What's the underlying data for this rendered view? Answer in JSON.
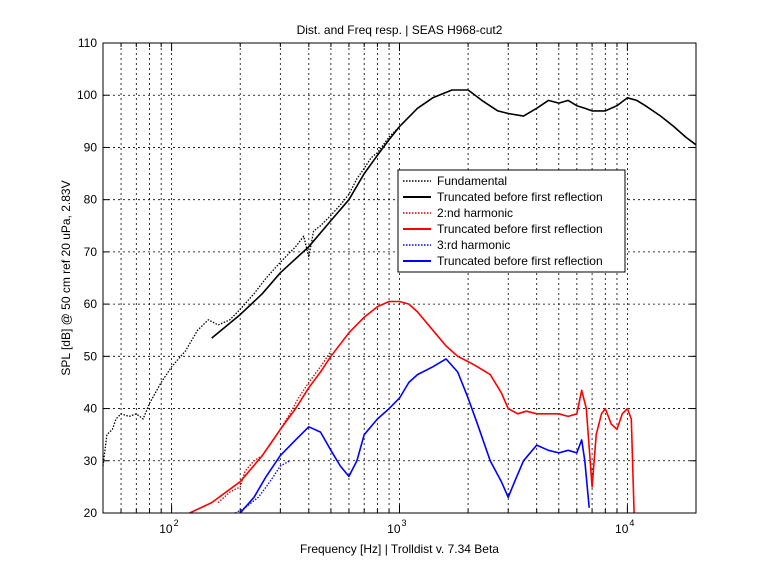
{
  "chart_data": {
    "type": "line",
    "title": "Dist. and Freq resp.  | SEAS H968-cut2",
    "xlabel": "Frequency [Hz] | Trolldist v. 7.34 Beta",
    "ylabel": "SPL [dB] @ 50 cm ref 20 uPa, 2.83V",
    "xscale": "log",
    "xlim": [
      50,
      20000
    ],
    "ylim": [
      20,
      110
    ],
    "grid": true,
    "legend_position": "center-right",
    "x_ticks": [
      {
        "value": 100,
        "base": "10",
        "exp": "2"
      },
      {
        "value": 1000,
        "base": "10",
        "exp": "3"
      },
      {
        "value": 10000,
        "base": "10",
        "exp": "4"
      }
    ],
    "y_ticks": [
      "20",
      "30",
      "40",
      "50",
      "60",
      "70",
      "80",
      "90",
      "100",
      "110"
    ],
    "series": [
      {
        "name": "Fundamental",
        "color": "#000000",
        "style": "dotted",
        "points": [
          [
            50,
            29
          ],
          [
            52,
            35
          ],
          [
            55,
            36
          ],
          [
            57,
            38
          ],
          [
            60,
            39
          ],
          [
            65,
            38.5
          ],
          [
            70,
            39
          ],
          [
            75,
            38
          ],
          [
            80,
            41
          ],
          [
            90,
            45
          ],
          [
            100,
            48
          ],
          [
            115,
            51
          ],
          [
            130,
            55
          ],
          [
            145,
            57
          ],
          [
            160,
            56
          ],
          [
            180,
            57
          ],
          [
            200,
            59
          ],
          [
            230,
            62
          ],
          [
            260,
            65
          ],
          [
            300,
            68
          ],
          [
            350,
            71
          ],
          [
            380,
            73
          ],
          [
            400,
            69
          ],
          [
            420,
            74
          ],
          [
            450,
            75
          ],
          [
            500,
            77
          ],
          [
            550,
            79
          ],
          [
            600,
            81
          ],
          [
            650,
            84
          ],
          [
            700,
            86
          ],
          [
            750,
            88
          ],
          [
            800,
            89
          ],
          [
            900,
            92
          ],
          [
            1000,
            94
          ]
        ]
      },
      {
        "name": "Truncated before first reflection",
        "color": "#000000",
        "style": "solid",
        "points": [
          [
            150,
            53.5
          ],
          [
            200,
            58
          ],
          [
            250,
            62
          ],
          [
            300,
            66
          ],
          [
            400,
            71
          ],
          [
            500,
            76
          ],
          [
            600,
            80
          ],
          [
            700,
            85
          ],
          [
            800,
            88.5
          ],
          [
            900,
            91.5
          ],
          [
            1000,
            94
          ],
          [
            1200,
            97.5
          ],
          [
            1400,
            99.5
          ],
          [
            1700,
            101
          ],
          [
            2000,
            101
          ],
          [
            2300,
            99
          ],
          [
            2700,
            97
          ],
          [
            3000,
            96.5
          ],
          [
            3500,
            96
          ],
          [
            4000,
            97.5
          ],
          [
            4500,
            99
          ],
          [
            5000,
            98.5
          ],
          [
            5500,
            99
          ],
          [
            6000,
            98
          ],
          [
            6500,
            97.5
          ],
          [
            7000,
            97
          ],
          [
            8000,
            97
          ],
          [
            9000,
            98
          ],
          [
            10000,
            99.5
          ],
          [
            11000,
            99
          ],
          [
            12000,
            98
          ],
          [
            14000,
            96
          ],
          [
            16000,
            94
          ],
          [
            18000,
            92
          ],
          [
            20000,
            90.5
          ]
        ]
      },
      {
        "name": "2:nd harmonic",
        "color": "#d00000",
        "style": "dotted",
        "points": [
          [
            160,
            22
          ],
          [
            180,
            24
          ],
          [
            200,
            25
          ],
          [
            210,
            28
          ],
          [
            230,
            30
          ],
          [
            250,
            31
          ],
          [
            280,
            34
          ],
          [
            300,
            36
          ],
          [
            330,
            39
          ],
          [
            360,
            42
          ],
          [
            400,
            45
          ],
          [
            450,
            48
          ],
          [
            500,
            51
          ]
        ]
      },
      {
        "name": "Truncated before first reflection",
        "color": "#ff0000",
        "style": "solid",
        "points": [
          [
            120,
            20
          ],
          [
            150,
            22
          ],
          [
            200,
            26
          ],
          [
            250,
            31
          ],
          [
            300,
            36
          ],
          [
            350,
            40
          ],
          [
            400,
            44
          ],
          [
            450,
            47
          ],
          [
            500,
            50
          ],
          [
            600,
            54.5
          ],
          [
            700,
            57.5
          ],
          [
            800,
            59.5
          ],
          [
            900,
            60.5
          ],
          [
            1000,
            60.5
          ],
          [
            1100,
            60
          ],
          [
            1200,
            58.5
          ],
          [
            1400,
            55
          ],
          [
            1600,
            52
          ],
          [
            1800,
            50
          ],
          [
            2000,
            49
          ],
          [
            2200,
            48
          ],
          [
            2500,
            46.5
          ],
          [
            2800,
            43
          ],
          [
            3000,
            40
          ],
          [
            3300,
            39
          ],
          [
            3600,
            39.5
          ],
          [
            4000,
            39
          ],
          [
            4500,
            39
          ],
          [
            5000,
            39
          ],
          [
            5500,
            38.5
          ],
          [
            6000,
            39
          ],
          [
            6300,
            43.5
          ],
          [
            6600,
            40
          ],
          [
            7000,
            25
          ],
          [
            7300,
            35
          ],
          [
            7700,
            39
          ],
          [
            8000,
            40
          ],
          [
            8500,
            37
          ],
          [
            9000,
            36
          ],
          [
            9500,
            39
          ],
          [
            10000,
            40
          ],
          [
            10400,
            38
          ],
          [
            10700,
            20
          ]
        ]
      },
      {
        "name": "3:rd harmonic",
        "color": "#0000ff",
        "style": "dotted",
        "points": [
          [
            190,
            20
          ],
          [
            210,
            21
          ],
          [
            240,
            23
          ],
          [
            260,
            25
          ],
          [
            280,
            27
          ],
          [
            300,
            29
          ],
          [
            330,
            30
          ]
        ]
      },
      {
        "name": "Truncated before first reflection",
        "color": "#0000ff",
        "style": "solid",
        "points": [
          [
            200,
            20
          ],
          [
            230,
            23
          ],
          [
            260,
            27
          ],
          [
            300,
            31
          ],
          [
            350,
            34
          ],
          [
            400,
            36.5
          ],
          [
            450,
            35.5
          ],
          [
            500,
            32
          ],
          [
            550,
            29
          ],
          [
            600,
            27
          ],
          [
            650,
            30
          ],
          [
            700,
            35
          ],
          [
            800,
            38
          ],
          [
            900,
            40
          ],
          [
            1000,
            42
          ],
          [
            1100,
            45
          ],
          [
            1200,
            46.5
          ],
          [
            1400,
            48
          ],
          [
            1600,
            49.5
          ],
          [
            1800,
            47
          ],
          [
            2000,
            42
          ],
          [
            2200,
            37
          ],
          [
            2500,
            30
          ],
          [
            2800,
            26
          ],
          [
            3000,
            23
          ],
          [
            3200,
            26
          ],
          [
            3500,
            30
          ],
          [
            4000,
            33
          ],
          [
            4500,
            32
          ],
          [
            5000,
            31.5
          ],
          [
            5500,
            32
          ],
          [
            6000,
            31.5
          ],
          [
            6300,
            34
          ],
          [
            6500,
            30
          ],
          [
            6800,
            21
          ]
        ]
      }
    ]
  }
}
